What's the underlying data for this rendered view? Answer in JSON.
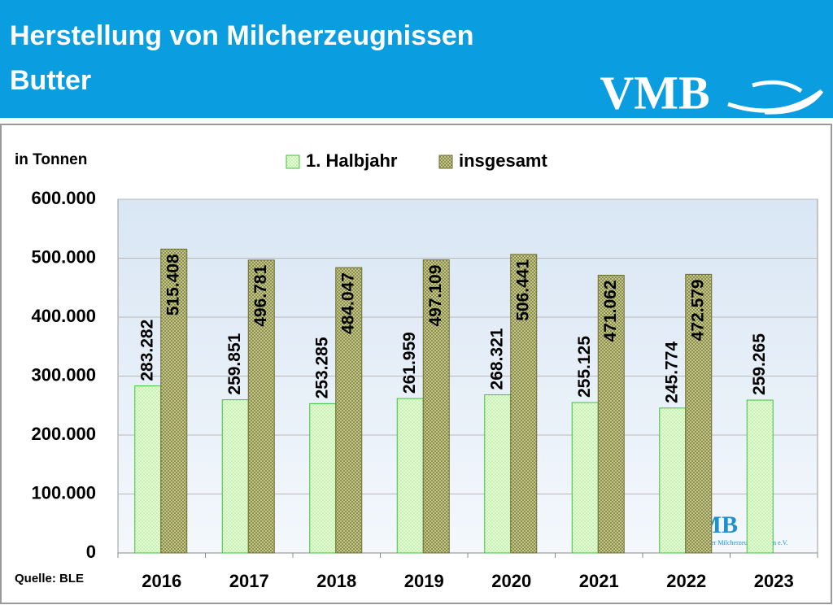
{
  "header": {
    "title": "Herstellung von Milcherzeugnissen",
    "subtitle": "Butter",
    "logo": "VMB"
  },
  "chart_data": {
    "type": "bar",
    "y_label": "in Tonnen",
    "source": "Quelle: BLE",
    "watermark": {
      "logo": "VMB",
      "text": "Verband der Milcherzeuger Bayern e.V."
    },
    "categories": [
      "2016",
      "2017",
      "2018",
      "2019",
      "2020",
      "2021",
      "2022",
      "2023"
    ],
    "series": [
      {
        "name": "1. Halbjahr",
        "color": "#c6f2ae",
        "values": [
          283282,
          259851,
          253285,
          261959,
          268321,
          255125,
          245774,
          259265
        ],
        "value_labels": [
          "283.282",
          "259.851",
          "253.285",
          "261.959",
          "268.321",
          "255.125",
          "245.774",
          "259.265"
        ]
      },
      {
        "name": "insgesamt",
        "color": "#c3c78a",
        "values": [
          515408,
          496781,
          484047,
          497109,
          506441,
          471062,
          472579,
          null
        ],
        "value_labels": [
          "515.408",
          "496.781",
          "484.047",
          "497.109",
          "506.441",
          "471.062",
          "472.579",
          null
        ]
      }
    ],
    "ylim": [
      0,
      600000
    ],
    "yticks": [
      0,
      {
        "value": 100000,
        "label": "100.000"
      },
      {
        "value": 200000,
        "label": "200.000"
      },
      {
        "value": 300000,
        "label": "300.000"
      },
      {
        "value": 400000,
        "label": "400.000"
      },
      {
        "value": 500000,
        "label": "500.000"
      },
      {
        "value": 600000,
        "label": "600.000"
      }
    ],
    "grid": true,
    "legend": "top"
  }
}
